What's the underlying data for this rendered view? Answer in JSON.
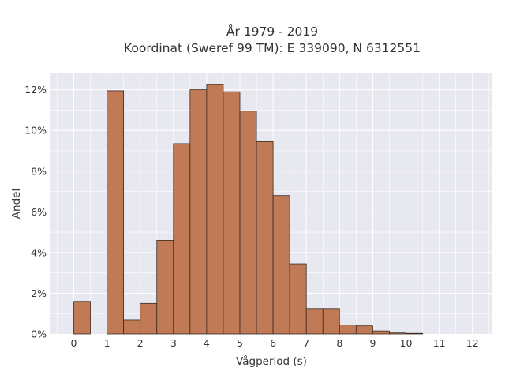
{
  "chart_data": {
    "type": "bar",
    "title_line1": "År 1979 - 2019",
    "title_line2": "Koordinat (Sweref 99 TM): E 339090, N 6312551",
    "xlabel": "Vågperiod (s)",
    "ylabel": "Andel",
    "xlim": [
      -0.7,
      12.6
    ],
    "ylim": [
      0,
      12.8
    ],
    "bin_width": 0.5,
    "bins": [
      {
        "x0": 0.0,
        "value": 1.6
      },
      {
        "x0": 1.0,
        "value": 11.95
      },
      {
        "x0": 1.5,
        "value": 0.7
      },
      {
        "x0": 2.0,
        "value": 1.5
      },
      {
        "x0": 2.5,
        "value": 4.6
      },
      {
        "x0": 3.0,
        "value": 9.35
      },
      {
        "x0": 3.5,
        "value": 12.0
      },
      {
        "x0": 4.0,
        "value": 12.25
      },
      {
        "x0": 4.5,
        "value": 11.9
      },
      {
        "x0": 5.0,
        "value": 10.95
      },
      {
        "x0": 5.5,
        "value": 9.45
      },
      {
        "x0": 6.0,
        "value": 6.8
      },
      {
        "x0": 6.5,
        "value": 3.45
      },
      {
        "x0": 7.0,
        "value": 1.25
      },
      {
        "x0": 7.5,
        "value": 1.25
      },
      {
        "x0": 8.0,
        "value": 0.45
      },
      {
        "x0": 8.5,
        "value": 0.4
      },
      {
        "x0": 9.0,
        "value": 0.15
      },
      {
        "x0": 9.5,
        "value": 0.05
      },
      {
        "x0": 10.0,
        "value": 0.03
      }
    ],
    "x_ticks": [
      0,
      1,
      2,
      3,
      4,
      5,
      6,
      7,
      8,
      9,
      10,
      11,
      12
    ],
    "y_ticks": [
      0,
      2,
      4,
      6,
      8,
      10,
      12
    ],
    "y_tick_labels": [
      "0%",
      "2%",
      "4%",
      "6%",
      "8%",
      "10%",
      "12%"
    ],
    "grid": true,
    "colors": {
      "bar_fill": "#c07a55",
      "bar_edge": "#3b2a20",
      "plot_background": "#e8e8f0",
      "grid": "#ffffff"
    }
  }
}
